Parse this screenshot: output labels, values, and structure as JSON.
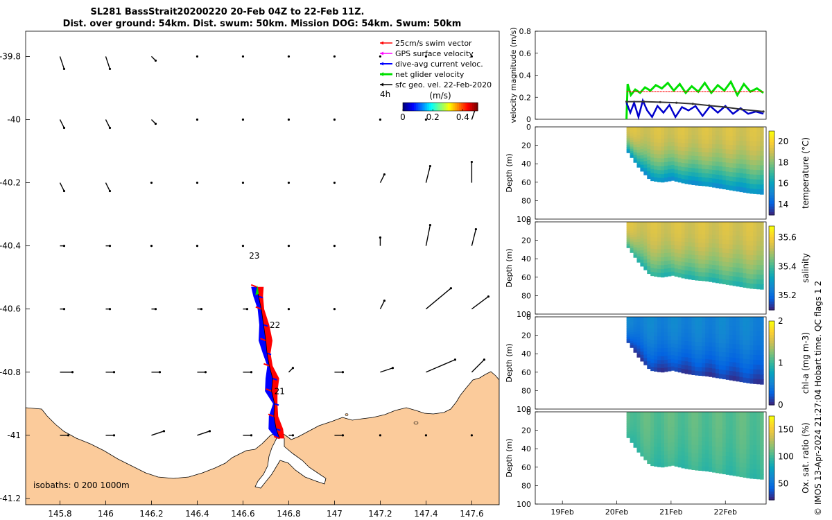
{
  "title": {
    "line1": "SL281 BassStrait20200220 20-Feb 04Z to 22-Feb 11Z.",
    "line2": "Dist. over ground: 54km. Dist. swum: 50km. Mission DOG: 54km. Swum: 50km"
  },
  "credit": "© IMOS 13-Apr-2024 21:27:04 Hobart time. QC flags 1  2",
  "chart_data": [
    {
      "type": "map",
      "name": "glider track map",
      "xlim": [
        145.65,
        147.72
      ],
      "ylim": [
        -41.22,
        -39.72
      ],
      "xticks": [
        145.8,
        146,
        146.2,
        146.4,
        146.6,
        146.8,
        147,
        147.2,
        147.4,
        147.6
      ],
      "xtick_labels": [
        "145.8",
        "146",
        "146.2",
        "146.4",
        "146.6",
        "146.8",
        "147",
        "147.2",
        "147.4",
        "147.6"
      ],
      "yticks": [
        -39.8,
        -40,
        -40.2,
        -40.4,
        -40.6,
        -40.8,
        -41,
        -41.2
      ],
      "ytick_labels": [
        "-39.8",
        "-40",
        "-40.2",
        "-40.4",
        "-40.6",
        "-40.8",
        "-41",
        "-41.2"
      ],
      "legend": {
        "placement": "top-right",
        "entries": [
          {
            "label": "25cm/s swim vector",
            "color": "#ff0000"
          },
          {
            "label": "GPS surface velocity",
            "color": "#ff00ff"
          },
          {
            "label": "dive-avg current veloc.",
            "color": "#0000ff"
          },
          {
            "label": "net glider velocity",
            "color": "#00e000"
          },
          {
            "label": "sfc geo. vel. 22-Feb-2020",
            "color": "#000000"
          }
        ]
      },
      "inset_label": "4h",
      "colorbar": {
        "label": "(m/s)",
        "ticks": [
          "0",
          "0.2",
          "0.4"
        ],
        "range": [
          0,
          0.5
        ],
        "orientation": "horizontal"
      },
      "day_labels": [
        {
          "text": "23",
          "lon": 146.65,
          "lat": -40.44
        },
        {
          "text": "22",
          "lon": 146.74,
          "lat": -40.66
        },
        {
          "text": "21",
          "lon": 146.76,
          "lat": -40.87
        }
      ],
      "annotation": "isobaths: 0   200  1000m",
      "track": [
        [
          146.76,
          -41.01
        ],
        [
          146.745,
          -40.98
        ],
        [
          146.735,
          -40.94
        ],
        [
          146.738,
          -40.9
        ],
        [
          146.725,
          -40.86
        ],
        [
          146.73,
          -40.82
        ],
        [
          146.715,
          -40.78
        ],
        [
          146.705,
          -40.74
        ],
        [
          146.7,
          -40.7
        ],
        [
          146.69,
          -40.65
        ],
        [
          146.68,
          -40.6
        ],
        [
          146.668,
          -40.56
        ],
        [
          146.66,
          -40.53
        ]
      ],
      "current_vectors": [
        {
          "lat": -39.8,
          "lon": [
            145.8,
            146,
            146.2,
            146.4,
            146.6,
            146.8,
            147,
            147.2,
            147.4,
            147.6
          ],
          "u": [
            0.01,
            0.01,
            0.01,
            0.0,
            0.0,
            0.0,
            0.0,
            0.0,
            0.0,
            0.0
          ],
          "v": [
            -0.03,
            -0.03,
            -0.01,
            0.0,
            0.0,
            0.0,
            0.0,
            0.0,
            0.0,
            0.0
          ]
        },
        {
          "lat": -40,
          "lon": [
            145.8,
            146,
            146.2,
            146.4,
            146.6,
            146.8,
            147,
            147.2,
            147.4,
            147.6
          ],
          "u": [
            0.01,
            0.01,
            0.01,
            0.0,
            0.0,
            0.0,
            0.0,
            0.0,
            0.0,
            0.01
          ],
          "v": [
            -0.02,
            -0.02,
            -0.01,
            0.0,
            0.0,
            0.0,
            0.0,
            0.0,
            0.0,
            0.03
          ]
        },
        {
          "lat": -40.2,
          "lon": [
            145.8,
            146,
            146.2,
            146.4,
            146.6,
            146.8,
            147,
            147.2,
            147.4,
            147.6
          ],
          "u": [
            0.01,
            0.01,
            0.0,
            0.0,
            0.0,
            0.0,
            0.0,
            0.01,
            0.01,
            0.0
          ],
          "v": [
            -0.02,
            -0.02,
            0.0,
            0.0,
            0.0,
            0.0,
            0.0,
            0.02,
            0.04,
            0.05
          ]
        },
        {
          "lat": -40.4,
          "lon": [
            145.8,
            146,
            146.2,
            146.4,
            146.6,
            146.8,
            147,
            147.2,
            147.4,
            147.6
          ],
          "u": [
            0.01,
            0.01,
            0.0,
            0.0,
            0.0,
            0.0,
            0.0,
            0.0,
            0.01,
            0.01
          ],
          "v": [
            0.0,
            0.0,
            0.0,
            0.0,
            0.0,
            0.0,
            0.0,
            0.02,
            0.05,
            0.04
          ]
        },
        {
          "lat": -40.6,
          "lon": [
            145.8,
            146,
            146.2,
            146.4,
            146.6,
            146.8,
            147,
            147.2,
            147.4,
            147.6
          ],
          "u": [
            0.01,
            0.01,
            0.01,
            0.01,
            0.01,
            0.0,
            0.0,
            0.01,
            0.06,
            0.04
          ],
          "v": [
            0.0,
            0.0,
            0.0,
            0.0,
            0.0,
            0.0,
            0.0,
            0.02,
            0.05,
            0.03
          ]
        },
        {
          "lat": -40.8,
          "lon": [
            145.8,
            146,
            146.2,
            146.4,
            146.6,
            146.8,
            147,
            147.2,
            147.4,
            147.6
          ],
          "u": [
            0.03,
            0.02,
            0.02,
            0.02,
            0.02,
            0.01,
            0.02,
            0.03,
            0.07,
            0.03
          ],
          "v": [
            0.0,
            0.0,
            0.0,
            0.0,
            0.0,
            0.01,
            0.0,
            0.01,
            0.03,
            0.03
          ]
        },
        {
          "lat": -41,
          "lon": [
            145.8,
            146,
            146.2,
            146.4,
            146.6,
            146.8,
            147,
            147.2,
            147.4,
            147.6
          ],
          "u": [
            0.02,
            0.02,
            0.03,
            0.03,
            0.02,
            0.01,
            0.02,
            0.0,
            0.0,
            0.0
          ],
          "v": [
            0.0,
            0.0,
            0.01,
            0.01,
            0.0,
            0.0,
            0.0,
            0.0,
            0.0,
            0.0
          ]
        }
      ]
    },
    {
      "type": "line",
      "name": "velocity",
      "ylabel": "velocity magnitude (m/s)",
      "ylim": [
        0,
        0.8
      ],
      "yticks": [
        0,
        0.2,
        0.4,
        0.6,
        0.8
      ],
      "ytick_labels": [
        "0",
        "0.2",
        "0.4",
        "0.6",
        "0.8"
      ],
      "xlim": [
        18.5,
        22.75
      ],
      "series": [
        {
          "color": "#00e000",
          "x": [
            20.18,
            20.2,
            20.26,
            20.34,
            20.43,
            20.52,
            20.62,
            20.72,
            20.83,
            20.94,
            21.05,
            21.16,
            21.27,
            21.38,
            21.5,
            21.62,
            21.74,
            21.86,
            21.98,
            22.1,
            22.22,
            22.34,
            22.46,
            22.58,
            22.7
          ],
          "y": [
            0.0,
            0.32,
            0.22,
            0.27,
            0.24,
            0.29,
            0.26,
            0.31,
            0.28,
            0.33,
            0.26,
            0.32,
            0.24,
            0.3,
            0.25,
            0.33,
            0.24,
            0.31,
            0.26,
            0.34,
            0.22,
            0.32,
            0.25,
            0.28,
            0.24
          ]
        },
        {
          "color": "#ff0000",
          "x": [
            20.18,
            20.5,
            21.0,
            21.5,
            22.0,
            22.5,
            22.7
          ],
          "y": [
            0.25,
            0.25,
            0.25,
            0.25,
            0.25,
            0.25,
            0.25
          ]
        },
        {
          "color": "#0000cc",
          "x": [
            20.18,
            20.25,
            20.32,
            20.4,
            20.48,
            20.56,
            20.65,
            20.75,
            20.86,
            20.97,
            21.08,
            21.2,
            21.32,
            21.45,
            21.58,
            21.72,
            21.86,
            22.0,
            22.14,
            22.28,
            22.42,
            22.56,
            22.7
          ],
          "y": [
            0.15,
            0.06,
            0.15,
            0.02,
            0.17,
            0.08,
            0.02,
            0.12,
            0.06,
            0.13,
            0.02,
            0.11,
            0.08,
            0.12,
            0.03,
            0.12,
            0.06,
            0.12,
            0.05,
            0.1,
            0.05,
            0.07,
            0.05
          ]
        },
        {
          "color": "#333333",
          "x": [
            20.18,
            20.5,
            20.8,
            21.1,
            21.4,
            21.7,
            22.0,
            22.3,
            22.7
          ],
          "y": [
            0.16,
            0.16,
            0.155,
            0.15,
            0.14,
            0.125,
            0.11,
            0.09,
            0.07
          ]
        }
      ]
    },
    {
      "type": "heatmap",
      "name": "temperature section",
      "ylabel": "Depth (m)",
      "colorbar_label": "temperature (°C)",
      "ylim": [
        100,
        0
      ],
      "yticks": [
        0,
        20,
        40,
        60,
        80,
        100
      ],
      "ytick_labels": [
        "0",
        "20",
        "40",
        "60",
        "80",
        "100"
      ],
      "cbar_range": [
        13,
        21
      ],
      "cbar_ticks": [
        14,
        16,
        18,
        20
      ],
      "cbar_tick_labels": [
        "14",
        "16",
        "18",
        "20"
      ],
      "cmap": "parula",
      "depth_bottom": [
        28,
        45,
        58,
        60,
        58,
        61,
        63,
        64,
        66,
        68,
        70,
        72,
        73
      ],
      "surface_value": 19.2,
      "bottom_value": 15.2
    },
    {
      "type": "heatmap",
      "name": "salinity section",
      "ylabel": "Depth (m)",
      "colorbar_label": "salinity",
      "ylim": [
        100,
        0
      ],
      "yticks": [
        0,
        20,
        40,
        60,
        80,
        100
      ],
      "ytick_labels": [
        "0",
        "20",
        "40",
        "60",
        "80",
        "100"
      ],
      "cbar_range": [
        35.1,
        35.68
      ],
      "cbar_ticks": [
        35.2,
        35.4,
        35.6
      ],
      "cbar_tick_labels": [
        "35.2",
        "35.4",
        "35.6"
      ],
      "cmap": "parula",
      "depth_bottom": [
        28,
        45,
        58,
        60,
        58,
        61,
        63,
        64,
        66,
        68,
        70,
        72,
        73
      ],
      "surface_value": 35.55,
      "bottom_value": 35.36
    },
    {
      "type": "heatmap",
      "name": "chlorophyll section",
      "ylabel": "Depth (m)",
      "colorbar_label": "chl-a (mg m-3)",
      "ylim": [
        100,
        0
      ],
      "yticks": [
        0,
        20,
        40,
        60,
        80,
        100
      ],
      "ytick_labels": [
        "0",
        "20",
        "40",
        "60",
        "80",
        "100"
      ],
      "cbar_range": [
        0,
        2
      ],
      "cbar_ticks": [
        0,
        1,
        2
      ],
      "cbar_tick_labels": [
        "0",
        "1",
        "2"
      ],
      "cmap": "parula",
      "depth_bottom": [
        28,
        45,
        58,
        60,
        58,
        61,
        63,
        64,
        66,
        68,
        70,
        72,
        73
      ],
      "surface_value": 0.5,
      "bottom_value": 0.05
    },
    {
      "type": "heatmap",
      "name": "oxygen saturation section",
      "ylabel": "Depth (m)",
      "colorbar_label": "Ox. sat. ratio (%)",
      "ylim": [
        100,
        0
      ],
      "yticks": [
        0,
        20,
        40,
        60,
        80,
        100
      ],
      "ytick_labels": [
        "0",
        "20",
        "40",
        "60",
        "80",
        "100"
      ],
      "cbar_range": [
        20,
        175
      ],
      "cbar_ticks": [
        50,
        100,
        150
      ],
      "cbar_tick_labels": [
        "50",
        "100",
        "150"
      ],
      "cmap": "parula",
      "depth_bottom": [
        28,
        45,
        58,
        60,
        58,
        61,
        63,
        64,
        66,
        68,
        70,
        72,
        73
      ],
      "surface_value": 106,
      "bottom_value": 96,
      "time_ticks": [
        19,
        20,
        21,
        22
      ],
      "time_tick_labels": [
        "19Feb",
        "20Feb",
        "21Feb",
        "22Feb"
      ],
      "xlabel": ""
    }
  ]
}
